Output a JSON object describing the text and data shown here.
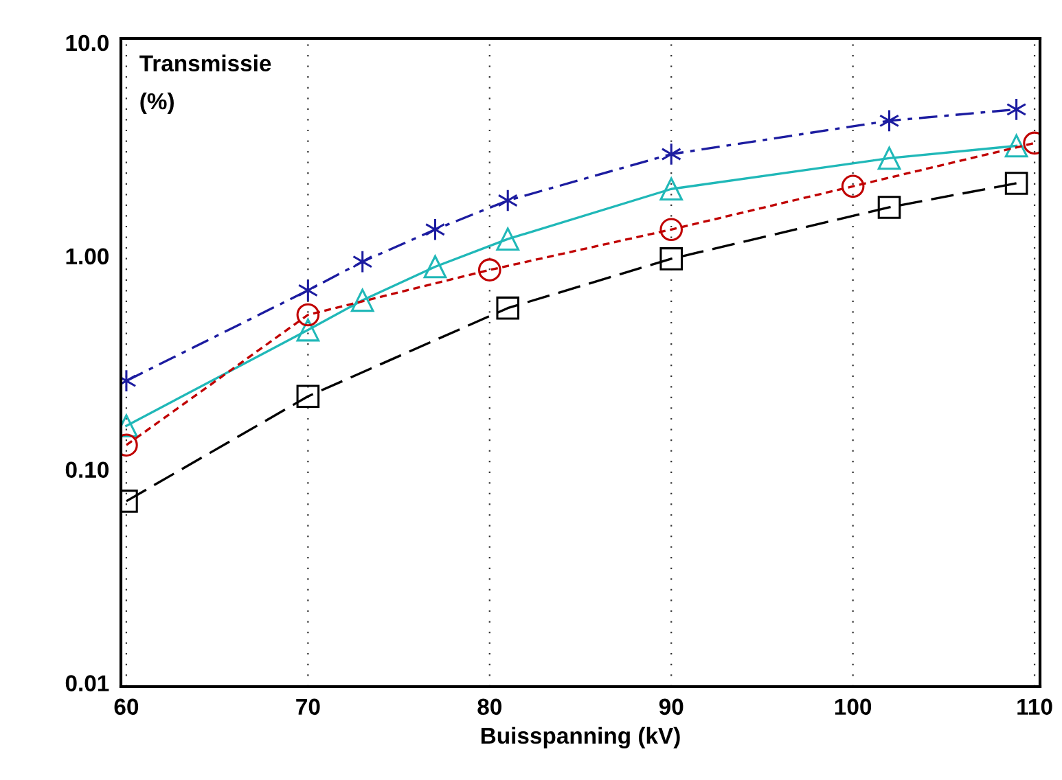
{
  "chart_data": {
    "type": "line",
    "ylabel": "Transmissie\n(%)",
    "xlabel": "Buisspanning (kV)",
    "log": "y",
    "grid": "x",
    "legend": false,
    "xlim": [
      59.7,
      110.3
    ],
    "xticks": [
      60,
      70,
      80,
      90,
      100,
      110
    ],
    "ylim": [
      0.0096,
      10.45
    ],
    "yticks": [
      {
        "value": 0.01,
        "label": "0.01"
      },
      {
        "value": 0.1,
        "label": "0.10"
      },
      {
        "value": 1,
        "label": "1.00"
      },
      {
        "value": 10,
        "label": "10.0"
      }
    ],
    "series": [
      {
        "color": "#1c1ca0",
        "marker": "cross",
        "line_style": "dashdot",
        "x": [
          60,
          70,
          73,
          77,
          81,
          90,
          102,
          109
        ],
        "values": [
          0.26,
          0.69,
          0.94,
          1.33,
          1.82,
          3.0,
          4.3,
          4.86
        ]
      },
      {
        "color": "#20b8b8",
        "marker": "triangle",
        "line_style": "solid",
        "x": [
          60,
          70,
          73,
          77,
          81,
          90,
          102,
          109
        ],
        "values": [
          0.16,
          0.45,
          0.62,
          0.89,
          1.2,
          2.06,
          2.87,
          3.28
        ]
      },
      {
        "color": "#c00000",
        "marker": "circle",
        "line_style": "dotted",
        "x": [
          60,
          70,
          80,
          90,
          100,
          110
        ],
        "values": [
          0.13,
          0.53,
          0.86,
          1.33,
          2.12,
          3.38
        ]
      },
      {
        "color": "#000000",
        "marker": "square",
        "line_style": "dashed",
        "x": [
          60,
          70,
          81,
          90,
          102,
          109
        ],
        "values": [
          0.071,
          0.22,
          0.57,
          0.97,
          1.69,
          2.19
        ]
      }
    ]
  }
}
